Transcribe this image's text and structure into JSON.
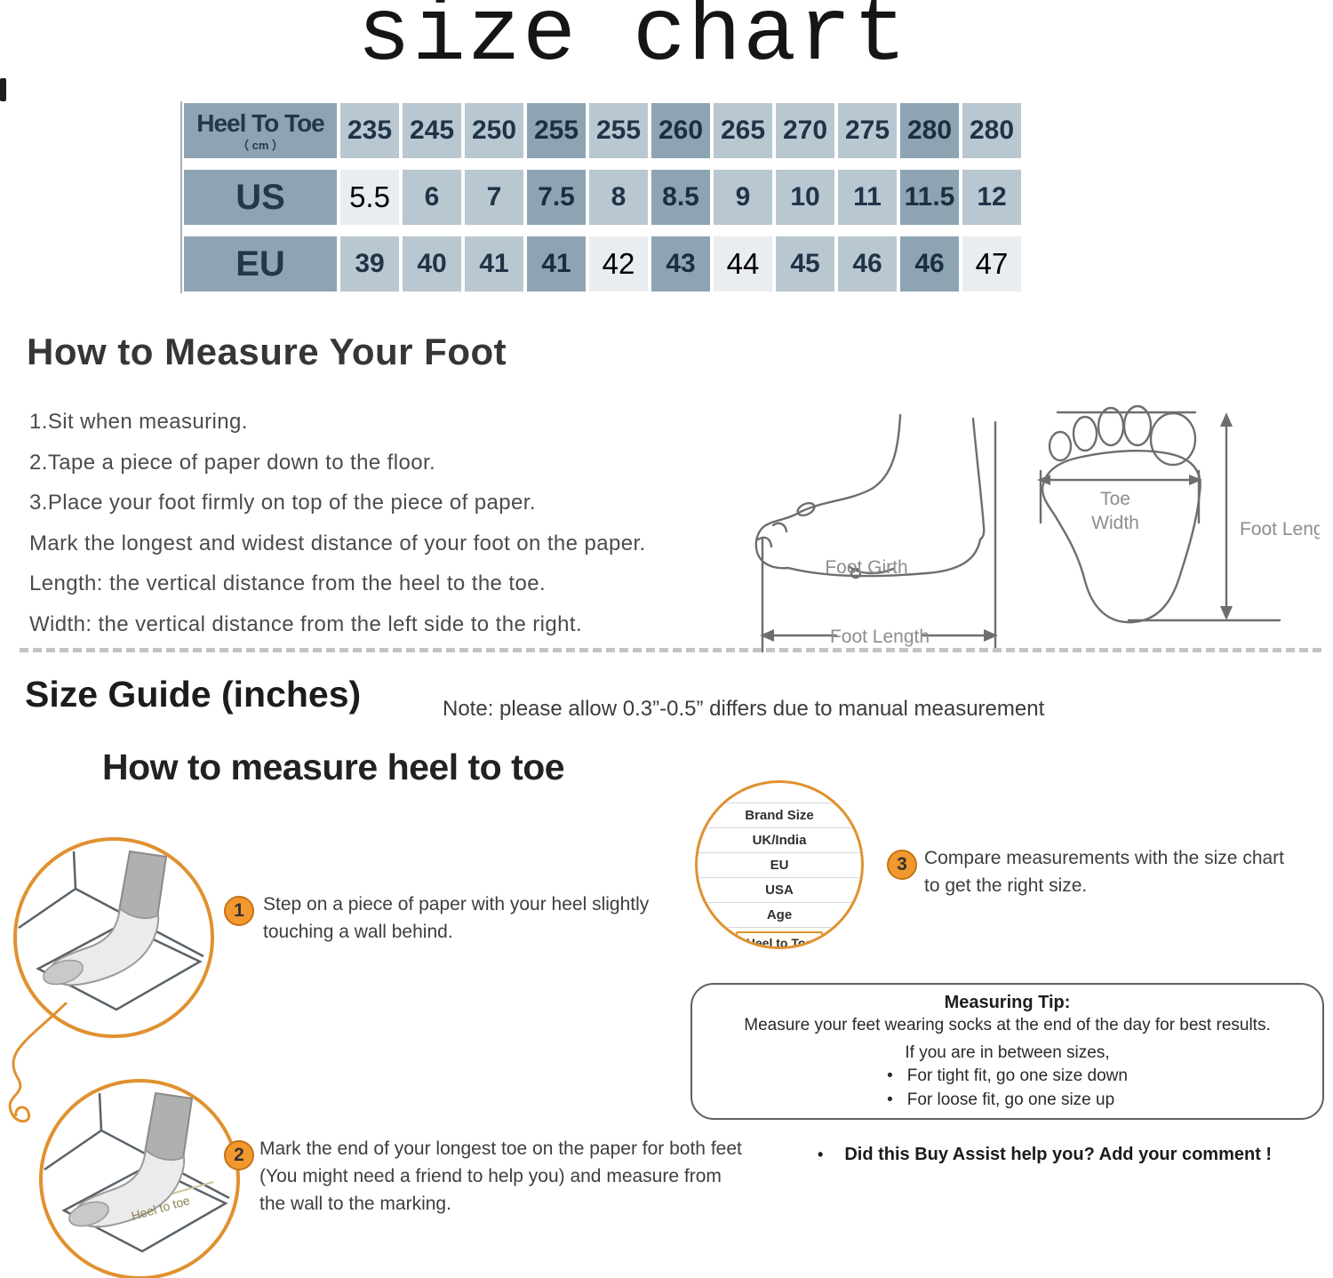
{
  "title": "size chart",
  "size_table": {
    "rows": [
      {
        "header": "Heel To Toe",
        "header_sub": "（ cm ）",
        "cells": [
          {
            "v": "235",
            "s": "l"
          },
          {
            "v": "245",
            "s": "l"
          },
          {
            "v": "250",
            "s": "l"
          },
          {
            "v": "255",
            "s": "d"
          },
          {
            "v": "255",
            "s": "l"
          },
          {
            "v": "260",
            "s": "d"
          },
          {
            "v": "265",
            "s": "l"
          },
          {
            "v": "270",
            "s": "l"
          },
          {
            "v": "275",
            "s": "l"
          },
          {
            "v": "280",
            "s": "d"
          },
          {
            "v": "280",
            "s": "l"
          }
        ]
      },
      {
        "header": "US",
        "cells": [
          {
            "v": "5.5",
            "s": "w"
          },
          {
            "v": "6",
            "s": "l"
          },
          {
            "v": "7",
            "s": "l"
          },
          {
            "v": "7.5",
            "s": "d"
          },
          {
            "v": "8",
            "s": "l"
          },
          {
            "v": "8.5",
            "s": "d"
          },
          {
            "v": "9",
            "s": "l"
          },
          {
            "v": "10",
            "s": "l"
          },
          {
            "v": "11",
            "s": "l"
          },
          {
            "v": "11.5",
            "s": "d"
          },
          {
            "v": "12",
            "s": "l"
          }
        ]
      },
      {
        "header": "EU",
        "cells": [
          {
            "v": "39",
            "s": "l"
          },
          {
            "v": "40",
            "s": "l"
          },
          {
            "v": "41",
            "s": "l"
          },
          {
            "v": "41",
            "s": "d"
          },
          {
            "v": "42",
            "s": "w"
          },
          {
            "v": "43",
            "s": "d"
          },
          {
            "v": "44",
            "s": "w"
          },
          {
            "v": "45",
            "s": "l"
          },
          {
            "v": "46",
            "s": "l"
          },
          {
            "v": "46",
            "s": "d"
          },
          {
            "v": "47",
            "s": "w"
          }
        ]
      }
    ]
  },
  "how_to_measure": {
    "heading": "How to Measure Your Foot",
    "instructions": [
      "1.Sit when measuring.",
      "2.Tape a piece of paper down to the floor.",
      "3.Place your foot firmly on top of the piece of paper.",
      "Mark the longest and widest distance of your foot on the paper.",
      "Length: the vertical distance from the heel to the toe.",
      "Width: the vertical distance from the left side to the right."
    ],
    "labels": {
      "foot_girth": "Foot Girth",
      "foot_length_side": "Foot Length",
      "toe_width_line1": "Toe",
      "toe_width_line2": "Width",
      "foot_length_print": "Foot Length"
    }
  },
  "size_guide": {
    "heading": "Size Guide (inches)",
    "note": "Note: please allow 0.3”-0.5” differs due to manual measurement",
    "subheading": "How to measure heel to toe",
    "steps": [
      {
        "num": "1",
        "lines": [
          "Step on a piece of paper with your heel slightly",
          "touching a wall behind."
        ]
      },
      {
        "num": "2",
        "lines": [
          "Mark the end of your longest toe on the paper for both feet",
          "(You might need a friend to help you) and measure from",
          "the wall to the marking."
        ]
      },
      {
        "num": "3",
        "lines": [
          "Compare measurements with the size chart",
          "to get the right size."
        ]
      }
    ],
    "size_fields": [
      "Brand Size",
      "UK/India",
      "EU",
      "USA",
      "Age"
    ],
    "size_field_highlighted": "Heel to Toe",
    "paper_label": "Heel to toe"
  },
  "measuring_tip": {
    "title": "Measuring Tip:",
    "line1": "Measure your feet wearing socks at the end of the day for best results.",
    "line2": "If you are in between sizes,",
    "bullets": [
      "For tight fit, go one size down",
      "For loose fit, go one size up"
    ]
  },
  "footer_note": "Did this Buy Assist help you? Add your comment !",
  "colors": {
    "accent_orange": "#E0912F",
    "table_dark": "#8EA4B2",
    "table_light": "#B9C7D1",
    "table_pale": "#E9EDF0",
    "table_text": "#203448"
  }
}
